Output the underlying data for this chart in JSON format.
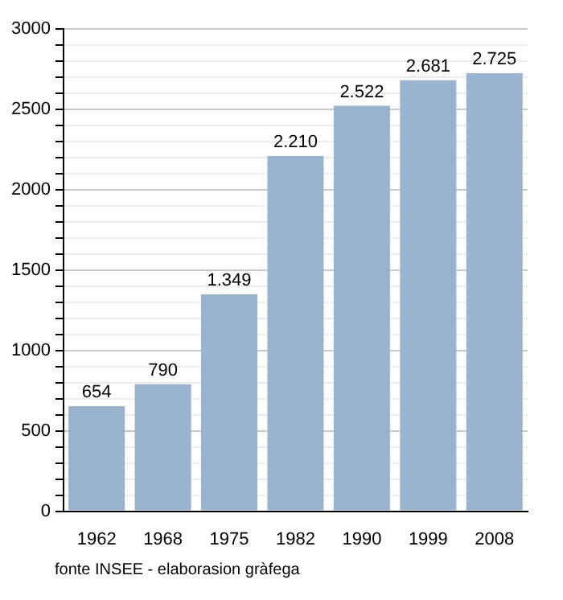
{
  "chart_data": {
    "type": "bar",
    "categories": [
      "1962",
      "1968",
      "1975",
      "1982",
      "1990",
      "1999",
      "2008"
    ],
    "values": [
      654,
      790,
      1349,
      2210,
      2522,
      2681,
      2725
    ],
    "value_labels": [
      "654",
      "790",
      "1.349",
      "2.210",
      "2.522",
      "2.681",
      "2.725"
    ],
    "color": "#9ab3cf",
    "ylim": [
      0,
      3000
    ],
    "yticks": [
      0,
      {
        "value": 100,
        "label": null
      },
      {
        "value": 200,
        "label": null
      },
      {
        "value": 300,
        "label": null
      },
      {
        "value": 400,
        "label": null
      },
      500,
      {
        "value": 600,
        "label": null
      },
      {
        "value": 700,
        "label": null
      },
      {
        "value": 800,
        "label": null
      },
      {
        "value": 900,
        "label": null
      },
      1000,
      {
        "value": 1100,
        "label": null
      },
      {
        "value": 1200,
        "label": null
      },
      {
        "value": 1300,
        "label": null
      },
      {
        "value": 1400,
        "label": null
      },
      1500,
      {
        "value": 1600,
        "label": null
      },
      {
        "value": 1700,
        "label": null
      },
      {
        "value": 1800,
        "label": null
      },
      {
        "value": 1900,
        "label": null
      },
      2000,
      {
        "value": 2100,
        "label": null
      },
      {
        "value": 2200,
        "label": null
      },
      {
        "value": 2300,
        "label": null
      },
      {
        "value": 2400,
        "label": null
      },
      2500,
      {
        "value": 2600,
        "label": null
      },
      {
        "value": 2700,
        "label": null
      },
      {
        "value": 2800,
        "label": null
      },
      {
        "value": 2900,
        "label": null
      },
      3000
    ],
    "grid": "y",
    "annotations": [
      "fonte INSEE - elaborasion gràfega"
    ]
  }
}
